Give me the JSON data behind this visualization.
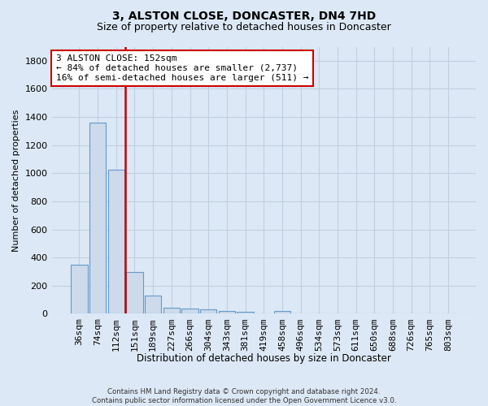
{
  "title": "3, ALSTON CLOSE, DONCASTER, DN4 7HD",
  "subtitle": "Size of property relative to detached houses in Doncaster",
  "xlabel": "Distribution of detached houses by size in Doncaster",
  "ylabel": "Number of detached properties",
  "footer_line1": "Contains HM Land Registry data © Crown copyright and database right 2024.",
  "footer_line2": "Contains public sector information licensed under the Open Government Licence v3.0.",
  "bin_labels": [
    "36sqm",
    "74sqm",
    "112sqm",
    "151sqm",
    "189sqm",
    "227sqm",
    "266sqm",
    "304sqm",
    "343sqm",
    "381sqm",
    "419sqm",
    "458sqm",
    "496sqm",
    "534sqm",
    "573sqm",
    "611sqm",
    "650sqm",
    "688sqm",
    "726sqm",
    "765sqm",
    "803sqm"
  ],
  "values": [
    350,
    1360,
    1025,
    295,
    130,
    40,
    38,
    30,
    20,
    15,
    0,
    20,
    0,
    0,
    0,
    0,
    0,
    0,
    0,
    0,
    0
  ],
  "bar_color": "#ccdaeb",
  "bar_edge_color": "#6699cc",
  "property_line_x": 2.5,
  "property_line_color": "#cc0000",
  "annotation_text": "3 ALSTON CLOSE: 152sqm\n← 84% of detached houses are smaller (2,737)\n16% of semi-detached houses are larger (511) →",
  "annotation_box_facecolor": "#ffffff",
  "annotation_box_edgecolor": "#cc0000",
  "ylim": [
    0,
    1900
  ],
  "yticks": [
    0,
    200,
    400,
    600,
    800,
    1000,
    1200,
    1400,
    1600,
    1800
  ],
  "background_color": "#dce8f5",
  "grid_color": "#c0cfe0",
  "title_fontsize": 10,
  "subtitle_fontsize": 9
}
